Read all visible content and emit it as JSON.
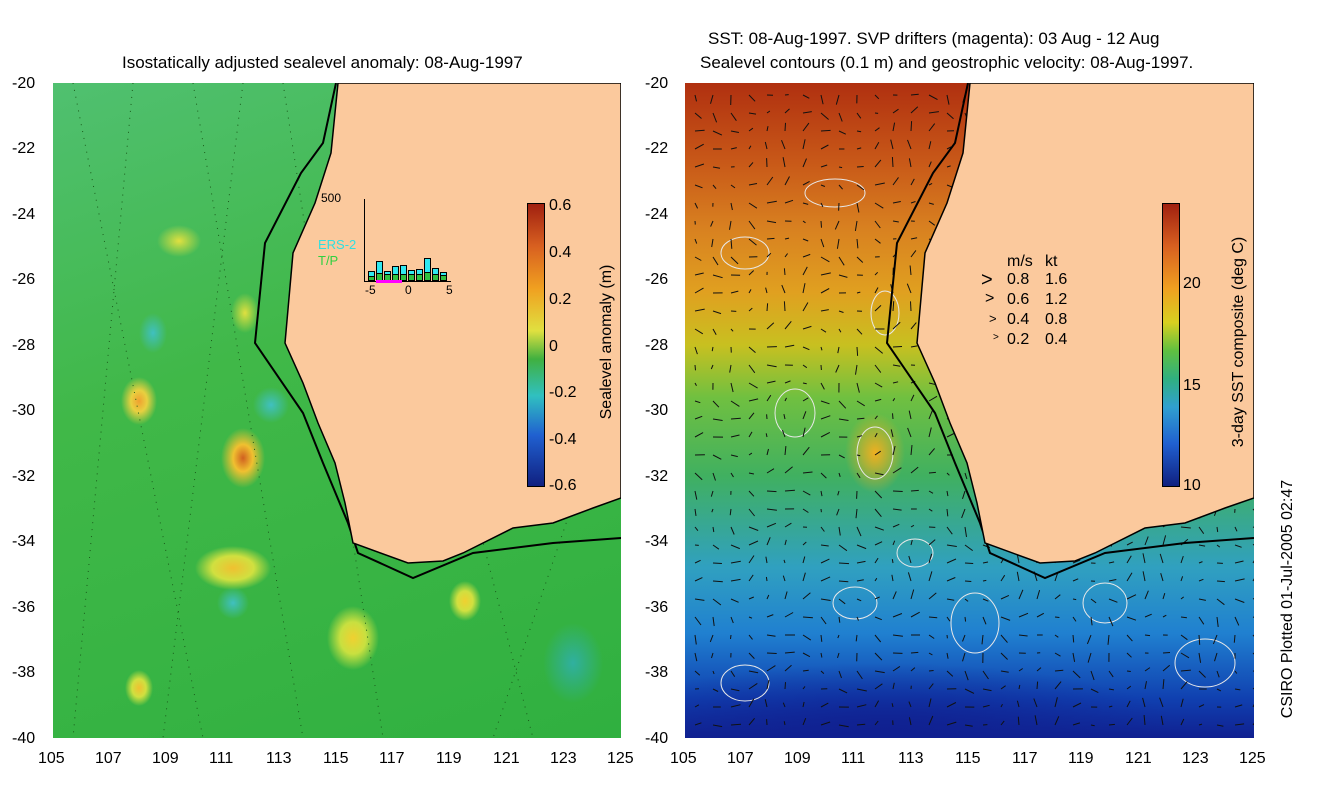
{
  "left_panel": {
    "title": "Isostatically adjusted sealevel anomaly: 08-Aug-1997",
    "y_ticks": [
      "-20",
      "-22",
      "-24",
      "-26",
      "-28",
      "-30",
      "-32",
      "-34",
      "-36",
      "-38",
      "-40"
    ],
    "x_ticks": [
      "105",
      "107",
      "109",
      "111",
      "113",
      "115",
      "117",
      "119",
      "121",
      "123",
      "125"
    ],
    "colorbar": {
      "label": "Sealevel anomaly (m)",
      "ticks": [
        "0.6",
        "0.4",
        "0.2",
        "0",
        "-0.2",
        "-0.4",
        "-0.6"
      ]
    },
    "inset": {
      "y_max_label": "500",
      "legend": [
        "ERS-2",
        "T/P"
      ],
      "x_ticks": [
        "-5",
        "0",
        "5"
      ],
      "ers2_heights": [
        60,
        120,
        60,
        90,
        100,
        70,
        75,
        140,
        80,
        55
      ],
      "tp_heights": [
        30,
        50,
        40,
        45,
        40,
        40,
        45,
        55,
        40,
        35
      ]
    }
  },
  "right_panel": {
    "title_line1": "SST: 08-Aug-1997. SVP drifters (magenta): 03 Aug - 12 Aug",
    "title_line2": "Sealevel contours (0.1 m) and geostrophic velocity: 08-Aug-1997.",
    "y_ticks": [
      "-20",
      "-22",
      "-24",
      "-26",
      "-28",
      "-30",
      "-32",
      "-34",
      "-36",
      "-38",
      "-40"
    ],
    "x_ticks": [
      "105",
      "107",
      "109",
      "111",
      "113",
      "115",
      "117",
      "119",
      "121",
      "123",
      "125"
    ],
    "colorbar": {
      "label": "3-day SST composite (deg C)",
      "ticks": [
        "20",
        "15",
        "10"
      ]
    },
    "velocity_legend": {
      "header_ms": "m/s",
      "header_kt": "kt",
      "rows": [
        {
          "ms": "0.8",
          "kt": "1.6"
        },
        {
          "ms": "0.6",
          "kt": "1.2"
        },
        {
          "ms": "0.4",
          "kt": "0.8"
        },
        {
          "ms": "0.2",
          "kt": "0.4"
        }
      ]
    }
  },
  "footer": {
    "credit": "CSIRO Plotted 01-Jul-2005 02:47"
  },
  "colors": {
    "land": "#fbc99d",
    "coast": "#000000"
  }
}
